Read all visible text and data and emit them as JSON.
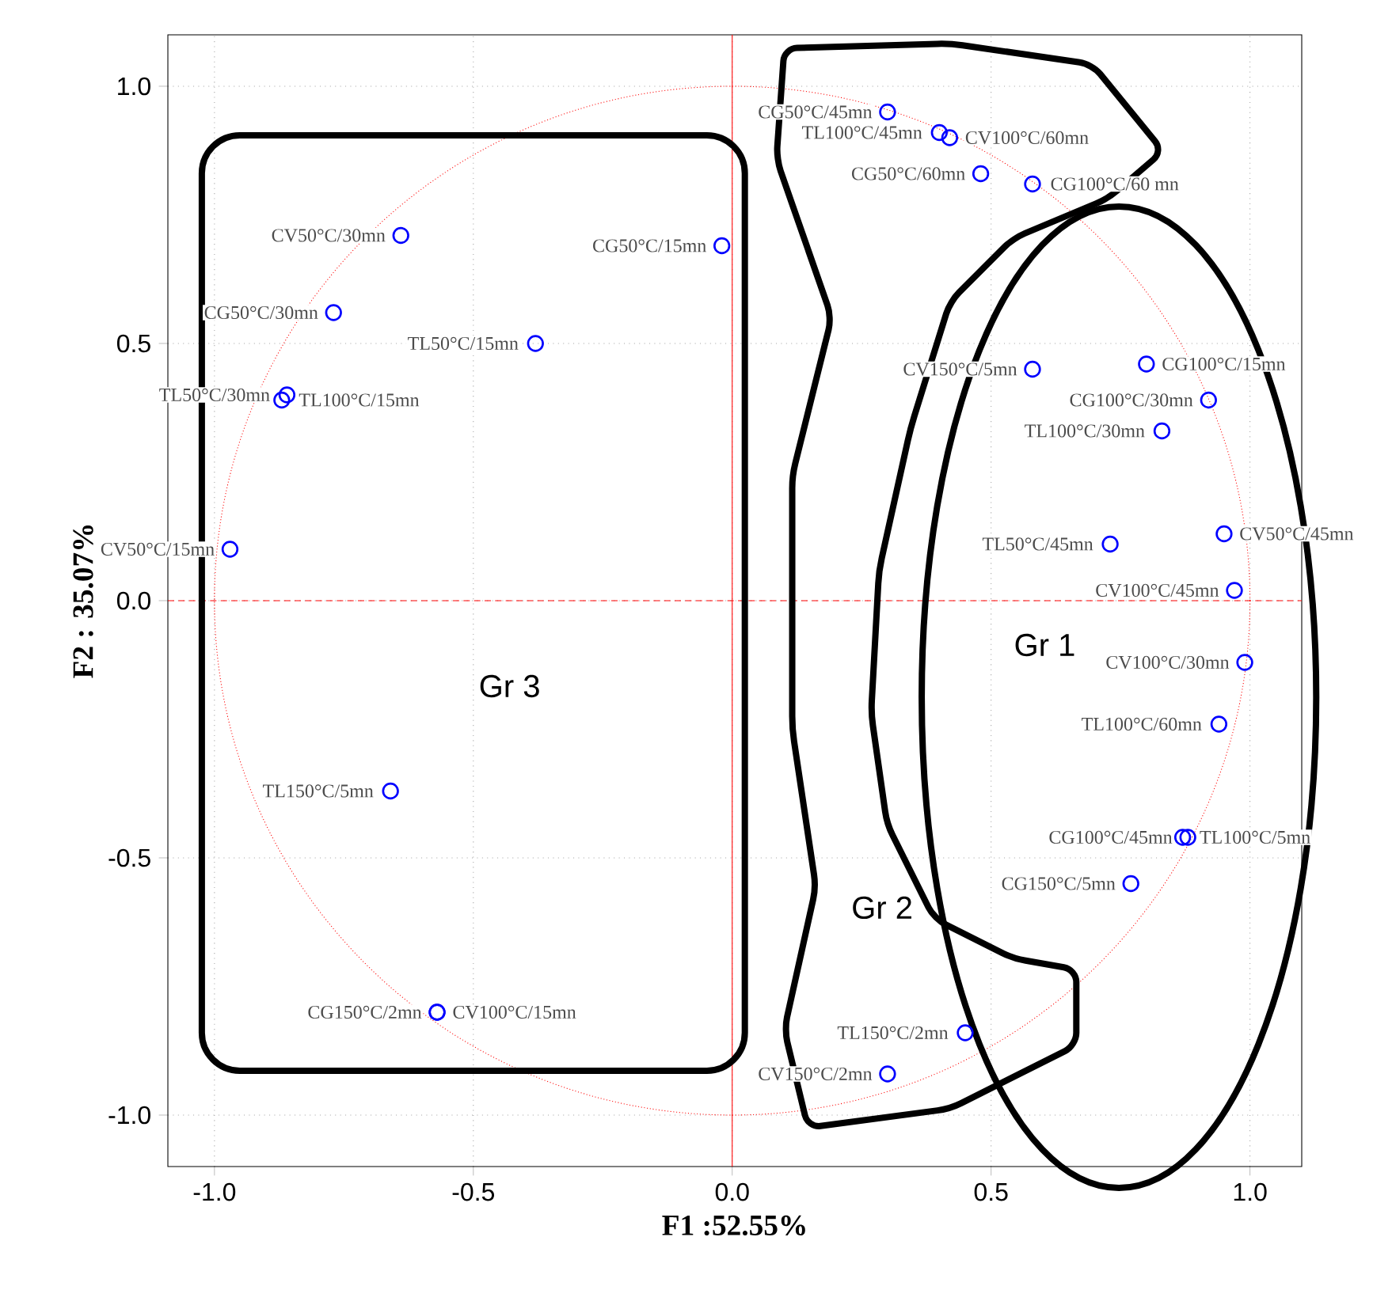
{
  "chart_data": {
    "type": "scatter",
    "xlabel": "F1  :52.55%",
    "ylabel": "F2 : 35.07%",
    "xlim": [
      -1.09,
      1.1
    ],
    "ylim": [
      -1.1,
      1.1
    ],
    "xticks": [
      {
        "value": -1,
        "label": "-1.0"
      },
      {
        "value": -0.5,
        "label": "-0.5"
      },
      {
        "value": 0,
        "label": "0.0"
      },
      {
        "value": 0.5,
        "label": "0.5"
      },
      {
        "value": 1,
        "label": "1.0"
      }
    ],
    "yticks": [
      {
        "value": -1,
        "label": "-1.0"
      },
      {
        "value": -0.5,
        "label": "-0.5"
      },
      {
        "value": 0,
        "label": "0.0"
      },
      {
        "value": 0.5,
        "label": "0.5"
      },
      {
        "value": 1,
        "label": "1.0"
      }
    ],
    "grid": true,
    "marker": "circle",
    "ref_lines": [
      {
        "axis": "x",
        "value": 0,
        "color": "#ff0000"
      },
      {
        "axis": "y",
        "value": 0,
        "color": "#ff0000",
        "line_style": "dashed"
      }
    ],
    "annotations": [
      "Gr 1",
      "Gr 2",
      "Gr 3"
    ],
    "series": [
      {
        "color": "#0000ff",
        "x": [
          0.3,
          0.4,
          0.42,
          0.48,
          0.58,
          -0.02,
          -0.64,
          -0.77,
          -0.38,
          -0.86,
          -0.87,
          -0.97,
          0.58,
          0.8,
          0.92,
          0.83,
          0.73,
          0.95,
          0.97,
          0.99,
          0.94,
          0.88,
          0.87,
          0.77,
          -0.66,
          -0.57,
          -0.57,
          0.45,
          0.3
        ],
        "values": [
          0.95,
          0.91,
          0.9,
          0.83,
          0.81,
          0.69,
          0.71,
          0.56,
          0.5,
          0.4,
          0.39,
          0.1,
          0.45,
          0.46,
          0.39,
          0.33,
          0.11,
          0.13,
          0.02,
          -0.12,
          -0.24,
          -0.46,
          -0.46,
          -0.55,
          -0.37,
          -0.8,
          -0.8,
          -0.84,
          -0.92
        ],
        "value_labels": [
          "CG50°C/45mn",
          "TL100°C/45mn",
          "CV100°C/60mn",
          "CG50°C/60mn",
          "CG100°C/60 mn",
          "CG50°C/15mn",
          "CV50°C/30mn",
          "CG50°C/30mn",
          "TL50°C/15mn",
          "TL50°C/30mn",
          "TL100°C/15mn",
          "CV50°C/15mn",
          "CV150°C/5mn",
          "CG100°C/15mn",
          "CG100°C/30mn",
          "TL100°C/30mn",
          "TL50°C/45mn",
          "CV50°C/45mn",
          "CV100°C/45mn",
          "CV100°C/30mn",
          "TL100°C/60mn",
          "CG100°C/45mn",
          "TL100°C/5mn",
          "CG150°C/5mn",
          "TL150°C/5mn",
          "CG150°C/2mn",
          "CV100°C/15mn",
          "TL150°C/2mn",
          "CV150°C/2mn"
        ]
      }
    ]
  }
}
